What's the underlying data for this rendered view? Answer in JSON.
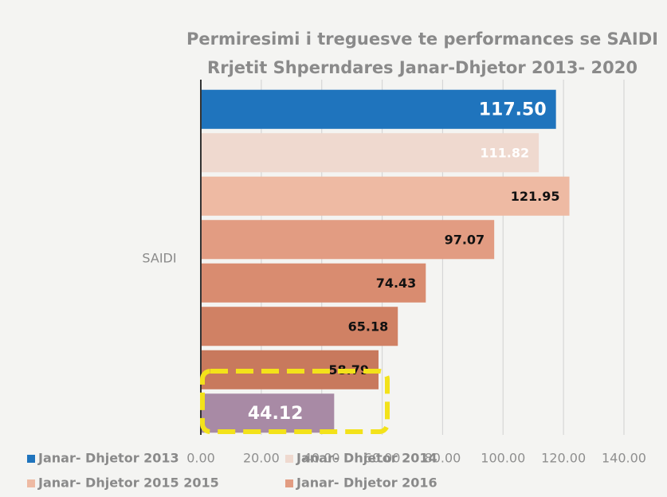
{
  "chart_data": {
    "type": "hbar",
    "title_lines": [
      "Permiresimi i treguesve te performances se SAIDI",
      "Rrjetit Shperndares Janar-Dhjetor 2013- 2020"
    ],
    "categories": [
      "SAIDI"
    ],
    "series": [
      {
        "name": "Janar- Dhjetor 2013",
        "color": "#1f74bd",
        "values": [
          117.5
        ],
        "value_labels": [
          "117.50"
        ]
      },
      {
        "name": "Janar- Dhjetor 2014",
        "color": "#efd9cf",
        "values": [
          111.82
        ],
        "value_labels": [
          "111.82"
        ]
      },
      {
        "name": "Janar- Dhjetor 2015 2015",
        "color": "#eebaa3",
        "values": [
          121.95
        ],
        "value_labels": [
          "121.95"
        ]
      },
      {
        "name": "Janar- Dhjetor 2016",
        "color": "#e29c82",
        "values": [
          97.07
        ],
        "value_labels": [
          "97.07"
        ]
      },
      {
        "color": "#d98c70",
        "values": [
          74.43
        ],
        "value_labels": [
          "74.43"
        ]
      },
      {
        "color": "#d08164",
        "values": [
          65.18
        ],
        "value_labels": [
          "65.18"
        ]
      },
      {
        "color": "#c8795d",
        "values": [
          58.79
        ],
        "value_labels": [
          "58.79"
        ]
      },
      {
        "color": "#a88aa5",
        "values": [
          44.12
        ],
        "value_labels": [
          "44.12"
        ]
      }
    ],
    "xlim": [
      0,
      140
    ],
    "xticks": [
      {
        "value": 0,
        "label": "0.00"
      },
      {
        "value": 20,
        "label": "20.00"
      },
      {
        "value": 40,
        "label": "40.00"
      },
      {
        "value": 60,
        "label": "60.00"
      },
      {
        "value": 80,
        "label": "80.00"
      },
      {
        "value": 100,
        "label": "100.00"
      },
      {
        "value": 120,
        "label": "120.00"
      },
      {
        "value": 140,
        "label": "140.00"
      }
    ],
    "grid": true
  }
}
